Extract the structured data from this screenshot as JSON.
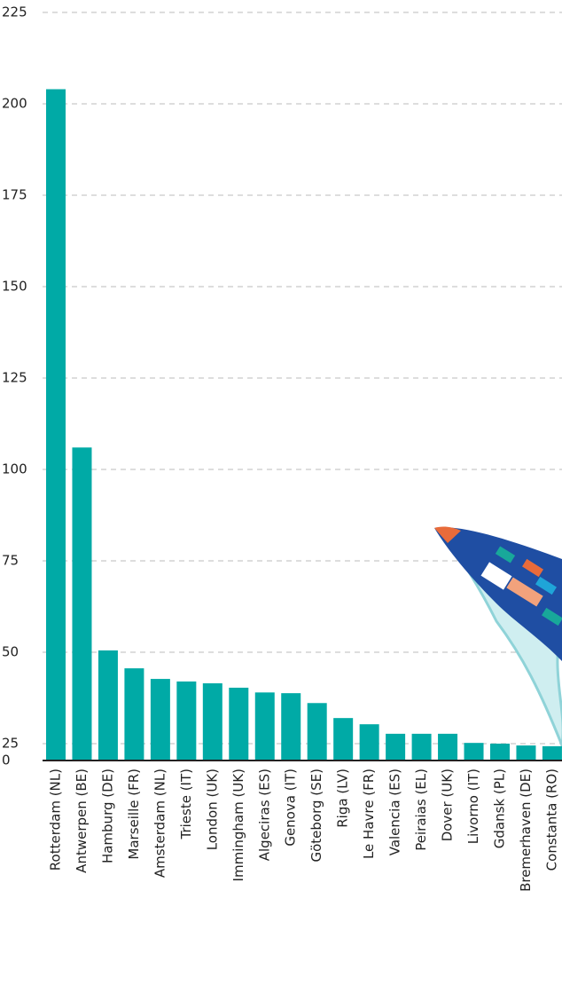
{
  "chart_data": {
    "type": "bar",
    "categories": [
      "Rotterdam (NL)",
      "Antwerpen (BE)",
      "Hamburg (DE)",
      "Marseille (FR)",
      "Amsterdam (NL)",
      "Trieste (IT)",
      "London (UK)",
      "Immingham (UK)",
      "Algeciras (ES)",
      "Genova (IT)",
      "Göteborg (SE)",
      "Riga (LV)",
      "Le Havre (FR)",
      "Valencia (ES)",
      "Peiraias (EL)",
      "Dover (UK)",
      "Livorno (IT)",
      "Gdansk (PL)",
      "Bremerhaven (DE)",
      "Constanta (RO)"
    ],
    "values": [
      204,
      106,
      50.5,
      45.6,
      42.7,
      42,
      41.5,
      40.3,
      39,
      38.8,
      36.1,
      32,
      30.3,
      27.7,
      27.7,
      27.7,
      25.2,
      25,
      24.5,
      24.3
    ],
    "color": "#00aaa6",
    "ylim": [
      0,
      225
    ],
    "yticks": [
      0,
      25,
      50,
      75,
      100,
      125,
      150,
      175,
      200,
      225
    ],
    "grid": true
  }
}
